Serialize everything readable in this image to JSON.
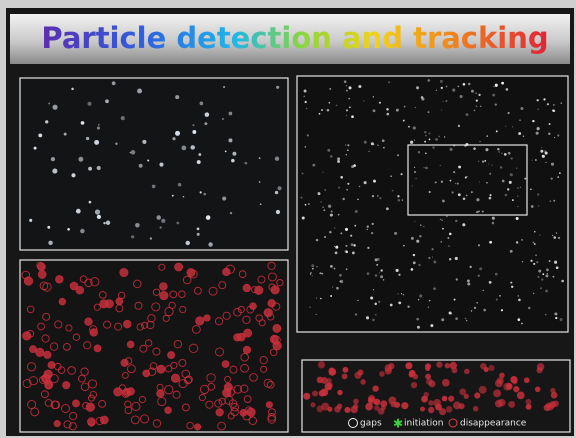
{
  "header": {
    "title": "Particle detection and tracking"
  },
  "legend": {
    "items": [
      "gaps",
      "initiation",
      "disappearance"
    ]
  }
}
